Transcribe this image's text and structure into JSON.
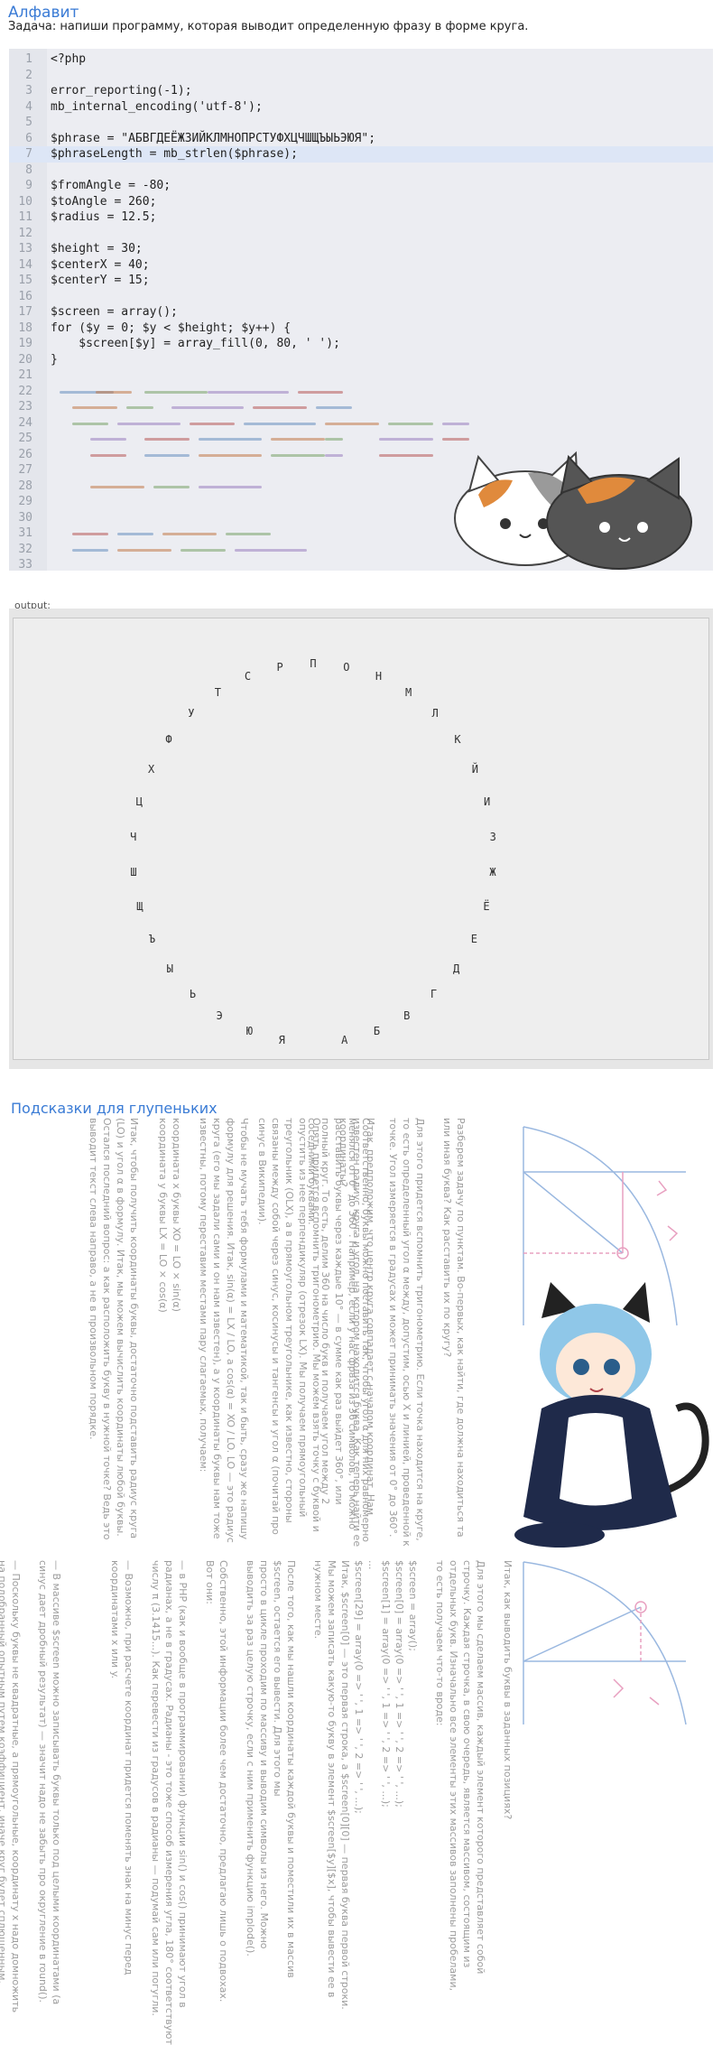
{
  "header": {
    "title": "Алфавит",
    "task": "Задача: напиши программу, которая выводит определенную фразу в форме круга."
  },
  "code": {
    "highlighted_line": 7,
    "lines": [
      {
        "n": "1",
        "text": "<?php"
      },
      {
        "n": "2",
        "text": ""
      },
      {
        "n": "3",
        "text": "error_reporting(-1);"
      },
      {
        "n": "4",
        "text": "mb_internal_encoding('utf-8');"
      },
      {
        "n": "5",
        "text": ""
      },
      {
        "n": "6",
        "text": "$phrase = \"АБВГДЕЁЖЗИЙКЛМНОПРСТУФХЦЧШЩЪЫЬЭЮЯ\";"
      },
      {
        "n": "7",
        "text": "$phraseLength = mb_strlen($phrase);"
      },
      {
        "n": "8",
        "text": ""
      },
      {
        "n": "9",
        "text": "$fromAngle = -80;"
      },
      {
        "n": "10",
        "text": "$toAngle = 260;"
      },
      {
        "n": "11",
        "text": "$radius = 12.5;"
      },
      {
        "n": "12",
        "text": ""
      },
      {
        "n": "13",
        "text": "$height = 30;"
      },
      {
        "n": "14",
        "text": "$centerX = 40;"
      },
      {
        "n": "15",
        "text": "$centerY = 15;"
      },
      {
        "n": "16",
        "text": ""
      },
      {
        "n": "17",
        "text": "$screen = array();"
      },
      {
        "n": "18",
        "text": "for ($y = 0; $y < $height; $y++) {"
      },
      {
        "n": "19",
        "text": "    $screen[$y] = array_fill(0, 80, ' ');"
      },
      {
        "n": "20",
        "text": "}"
      },
      {
        "n": "21",
        "text": ""
      },
      {
        "n": "22",
        "text": ""
      },
      {
        "n": "23",
        "text": ""
      },
      {
        "n": "24",
        "text": ""
      },
      {
        "n": "25",
        "text": ""
      },
      {
        "n": "26",
        "text": ""
      },
      {
        "n": "27",
        "text": ""
      },
      {
        "n": "28",
        "text": ""
      },
      {
        "n": "29",
        "text": ""
      },
      {
        "n": "30",
        "text": ""
      },
      {
        "n": "31",
        "text": ""
      },
      {
        "n": "32",
        "text": ""
      },
      {
        "n": "33",
        "text": ""
      }
    ]
  },
  "output": {
    "label": "output:",
    "letters": [
      "Я",
      "Ю",
      "Э",
      "Ь",
      "Ы",
      "Ъ",
      "Щ",
      "Ш",
      "Ч",
      "Ц",
      "Х",
      "Ф",
      "У",
      "Т",
      "С",
      "Р",
      "П",
      "О",
      "Н",
      "М",
      "Л",
      "К",
      "Й",
      "И",
      "З",
      "Ж",
      "Ё",
      "Е",
      "Д",
      "Г",
      "В",
      "Б",
      "А"
    ]
  },
  "hints": {
    "title": "Подсказки для глупеньких",
    "columns": [
      "Разберем задачу по пунктам. Во-первых, как найти, где должна находиться та\nили иная буква? Как расставить их по кругу?\n\nДля этого придется вспомнить тригонометрию. Если точка находится на круге,\nто есть определенный угол α между, допустим, осью X и линией, проведенной к\nточке. Угол измеряется в градусах и может принимать значения от 0° до 360°.\n\nСоответственно, буквы можно поставить так, чтобы угол α для них равномерно\nменялся от 0° до 360°. Например, если у нас фраза из 36 символов, то можно\nрасставить буквы через каждые 10° — в сумме как раз выйдет 360°, или\nполный круг. То есть, делим 360 на число букв и получаем угол между 2\nсоседними буквами.",
      "Итак, предположим, что центр круга совпадает с началом координат. Нам\nизвестен радиус круга и угол, на котором находится буква. Как теперь найти ее\nкоординаты?\n\nОпять придется вспомнить тригонометрию. Мы можем взять точку с буквой и\nопустить из нее перпендикуляр (отрезок LX). Мы получаем прямоугольный\nтреугольник (OLX), а в прямоугольном треугольнике, как известно, стороны\nсвязаны между собой через синус, косинусы и тангенсы и угол α (почитай про\nсинус в Википедии).",
      "Чтобы не мучать тебя формулами и математикой, так и быть, сразу же напишу\nформулу для решения. Итак, sin(α) = LX / LO, а cos(α) = XO / LO. LO — это радиус\nкруга (его мы задали сами и он нам известен), а у координаты буквы нам тоже\nизвестны, потому переставим местами пару слагаемых, получаем:\n\nкоордината x буквы XO = LO × sin(α)\nкоордината y буквы LX = LO × cos(α)",
      "Итак, чтобы получить координаты буквы, достаточно подставить радиус круга\n(LO) и угол α в формулу. Итак, мы можем вычислить координаты любой буквы.\nОстался последний вопрос: а как расположить букву в нужной точке? Ведь это\nвыводит текст слева направо, а не в произвольном порядке.",
      "Итак, как выводить буквы в заданных позициях?\n\nДля этого мы сделаем массив, каждый элемент которого представляет собой\nстрочку. Каждая строчка, в свою очередь, является массивом, состоящим из\nотдельных букв. Изначально все элементы этих массивов заполнены пробелами,\nто есть получаем что-то вроде:\n\n$screen = array();\n$screen[0] = array(0 => ' ', 1 => ' ', 2 => ' ', ...);\n$screen[1] = array(0 => ' ', 1 => ' ', 2 => ' ', ...);\n...\n$screen[29] = array(0 => ' ', 1 => ' ', 2 => ' ', ...);",
      "Итак, $screen[0] — это первая строка, а $screen[0][0] — первая буква первой строки.\nМы можем записать какую-то букву в элемент $screen[$y][$x], чтобы вывести ее в\nнужном месте.\n\nПосле того, как мы нашли координаты каждой буквы и поместили их в массив\n$screen, остается его вывести. Для этого мы\nпросто в цикле проходим по массиву и выводим символы из него. Можно\nвыводить за раз целую строчку, если с ним применить функцию implode().\n\nСобственно, этой информации более чем достаточно, предлагаю лишь о подвохах.\nВот они:",
      "— в PHP (как и вообще в программировании) функции sin() и cos() принимают угол в\nрадианах, а не в градусах. Радианы - это тоже способ измерения угла, 180° соответствуют\nчислу π (3.1415...). Как перевести из градусов в радианы — подумай сам или погугли.\n\n— Возможно, при расчете координат придется поменять знак на минус перед\nкоординатами x или y.",
      "— В массиве $screen можно записывать буквы только под целыми координатами (а\nсинус дает дробный результат) — значит надо не забыть про округление в round().\n\n— Поскольку буквы не квадратные, а прямоугольные, координату x надо домножить\nна подобранный опытным путем коэффициент, иначе круг будет сплющенным.\n\n— Если менять не только угол, но и радиус, можно сделать спираль вместо круга!"
    ]
  },
  "colors": {
    "accent": "#3a7bd5",
    "code_bg": "#ecedf2",
    "highlight": "#dde6f6",
    "output_bg": "#eeeeee"
  }
}
